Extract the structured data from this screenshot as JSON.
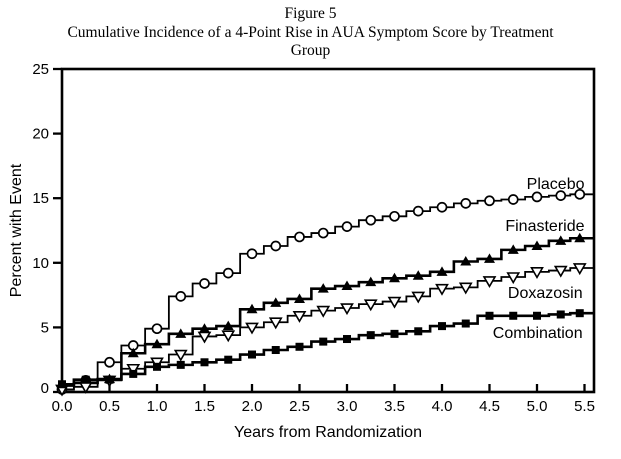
{
  "figure": {
    "label": "Figure 5",
    "title_line1": "Cumulative Incidence of a 4-Point Rise in AUA Symptom Score by Treatment",
    "title_line2": "Group"
  },
  "chart_data": {
    "type": "line",
    "line_style": "step",
    "title": "Figure 5",
    "subtitle": "Cumulative Incidence of a 4-Point Rise in AUA Symptom Score by Treatment Group",
    "xlabel": "Years from Randomization",
    "ylabel": "Percent with Event",
    "xlim": [
      0,
      5.6
    ],
    "ylim": [
      0,
      25
    ],
    "xticks": [
      "0.0",
      "0.5",
      "1.0",
      "1.5",
      "2.0",
      "2.5",
      "3.0",
      "3.5",
      "4.0",
      "4.5",
      "5.0",
      "5.5"
    ],
    "yticks": [
      0,
      5,
      10,
      15,
      20,
      25
    ],
    "grid": false,
    "color": "#000000",
    "background": "#ffffff",
    "legend_position": "inline-right-labels",
    "x": [
      0,
      0.25,
      0.5,
      0.75,
      1.0,
      1.25,
      1.5,
      1.75,
      2.0,
      2.25,
      2.5,
      2.75,
      3.0,
      3.25,
      3.5,
      3.75,
      4.0,
      4.25,
      4.5,
      4.75,
      5.0,
      5.25,
      5.45
    ],
    "series": [
      {
        "name": "Placebo",
        "marker": "circle-open",
        "line_width": 1.8,
        "label_x": 5.5,
        "label_y": 16.1,
        "values": [
          0.2,
          0.9,
          2.3,
          3.6,
          4.9,
          7.4,
          8.4,
          9.2,
          10.7,
          11.3,
          12.0,
          12.3,
          12.8,
          13.3,
          13.6,
          14.0,
          14.3,
          14.6,
          14.8,
          14.9,
          15.1,
          15.2,
          15.3
        ]
      },
      {
        "name": "Finasteride",
        "marker": "triangle-up-filled",
        "line_width": 2.6,
        "label_x": 5.5,
        "label_y": 12.85,
        "values": [
          0.5,
          0.7,
          1.0,
          3.0,
          3.7,
          4.5,
          4.9,
          5.1,
          6.4,
          6.9,
          7.2,
          8.0,
          8.2,
          8.5,
          8.8,
          9.0,
          9.3,
          10.1,
          10.3,
          11.0,
          11.3,
          11.7,
          11.9
        ]
      },
      {
        "name": "Doxazosin",
        "marker": "triangle-down-open",
        "line_width": 1.8,
        "label_x": 5.48,
        "label_y": 7.65,
        "values": [
          0.2,
          0.4,
          0.9,
          1.8,
          2.3,
          2.9,
          4.3,
          4.4,
          5.0,
          5.4,
          5.9,
          6.3,
          6.5,
          6.8,
          7.0,
          7.4,
          8.0,
          8.1,
          8.6,
          8.9,
          9.3,
          9.4,
          9.6
        ]
      },
      {
        "name": "Combination",
        "marker": "square-filled",
        "line_width": 2.6,
        "label_x": 5.48,
        "label_y": 4.55,
        "values": [
          0.6,
          0.95,
          0.95,
          1.4,
          1.95,
          2.1,
          2.3,
          2.5,
          2.9,
          3.25,
          3.5,
          3.9,
          4.1,
          4.4,
          4.5,
          4.7,
          5.1,
          5.3,
          5.9,
          5.9,
          5.9,
          6.0,
          6.1
        ]
      }
    ]
  }
}
